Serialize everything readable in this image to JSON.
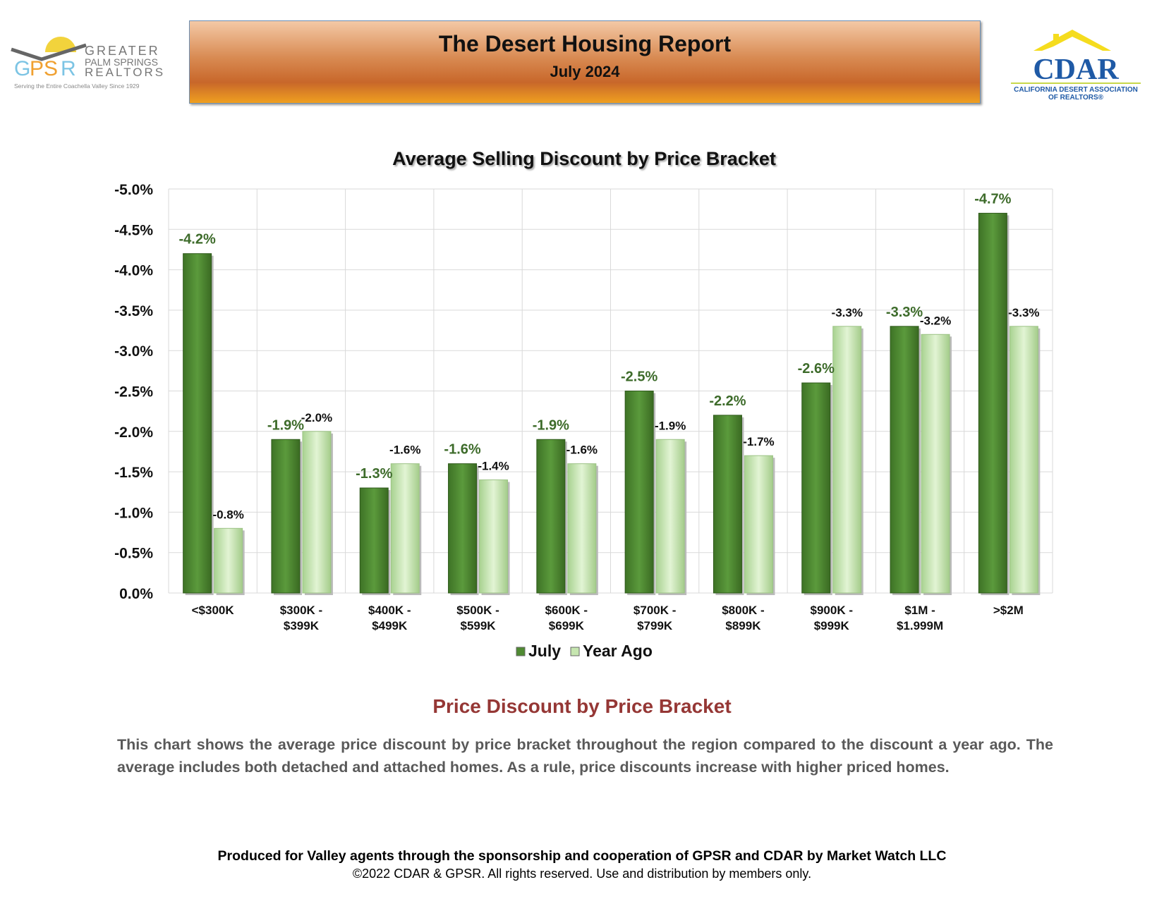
{
  "header": {
    "title": "The Desert Housing Report",
    "subtitle": "July 2024"
  },
  "logos": {
    "left": {
      "text": "GPSR GREATER PALM SPRINGS REALTORS",
      "tagline": "Serving the Entire Coachella Valley Since 1929"
    },
    "right": {
      "text": "CDAR",
      "tagline": "CALIFORNIA DESERT ASSOCIATION OF REALTORS"
    }
  },
  "chart_data": {
    "type": "bar",
    "title": "Average Selling Discount by Price Bracket",
    "categories": [
      [
        "<$300K"
      ],
      [
        "$300K -",
        "$399K"
      ],
      [
        "$400K -",
        "$499K"
      ],
      [
        "$500K -",
        "$599K"
      ],
      [
        "$600K -",
        "$699K"
      ],
      [
        "$700K -",
        "$799K"
      ],
      [
        "$800K -",
        "$899K"
      ],
      [
        "$900K -",
        "$999K"
      ],
      [
        "$1M -",
        "$1.999M"
      ],
      [
        ">$2M"
      ]
    ],
    "series": [
      {
        "name": "July",
        "color": "#4f8a32",
        "values": [
          -4.2,
          -1.9,
          -1.3,
          -1.6,
          -1.9,
          -2.5,
          -2.2,
          -2.6,
          -3.3,
          -4.7
        ],
        "labels": [
          "-4.2%",
          "-1.9%",
          "-1.3%",
          "-1.6%",
          "-1.9%",
          "-2.5%",
          "-2.2%",
          "-2.6%",
          "-3.3%",
          "-4.7%"
        ]
      },
      {
        "name": "Year Ago",
        "color": "#c6e6b0",
        "values": [
          -0.8,
          -2.0,
          -1.6,
          -1.4,
          -1.6,
          -1.9,
          -1.7,
          -3.3,
          -3.2,
          -3.3
        ],
        "labels": [
          "-0.8%",
          "-2.0%",
          "-1.6%",
          "-1.4%",
          "-1.6%",
          "-1.9%",
          "-1.7%",
          "-3.3%",
          "-3.2%",
          "-3.3%"
        ]
      }
    ],
    "yticks": [
      "0.0%",
      "-0.5%",
      "-1.0%",
      "-1.5%",
      "-2.0%",
      "-2.5%",
      "-3.0%",
      "-3.5%",
      "-4.0%",
      "-4.5%",
      "-5.0%"
    ],
    "ylim": [
      0,
      -5.0
    ],
    "axis_reversed": true,
    "grid": true,
    "legend": "bottom"
  },
  "description": {
    "title": "Price Discount by Price Bracket",
    "text": "This chart shows the average price discount by price bracket throughout the region compared to the discount a year ago. The average includes both detached and attached homes. As a rule, price discounts increase with higher priced homes."
  },
  "footer": {
    "line1": "Produced for Valley agents through the sponsorship and cooperation of GPSR and CDAR by Market Watch LLC",
    "line2": "©2022 CDAR & GPSR.  All rights reserved.  Use and distribution by members only."
  }
}
